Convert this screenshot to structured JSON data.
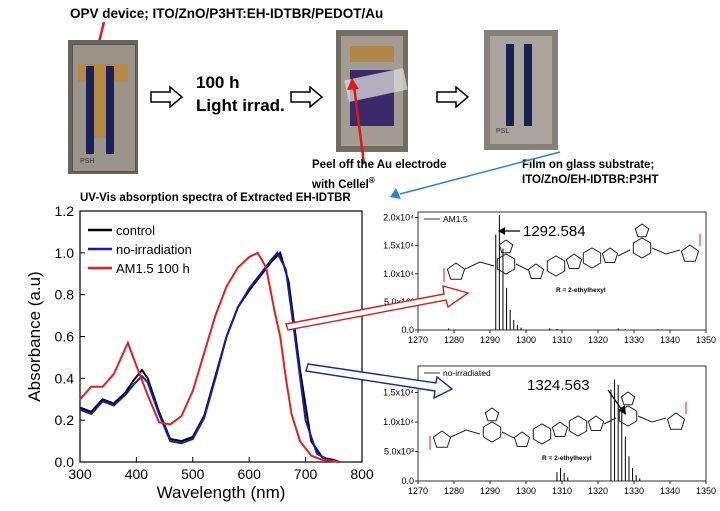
{
  "header": {
    "device_label": "OPV device; ITO/ZnO/P3HT:EH-IDTBR/PEDOT/Au",
    "step1_line1": "100 h",
    "step1_line2": "Light irrad.",
    "peel_line1": "Peel off the Au electrode",
    "peel_line2": "with Cellel",
    "peel_sup": "®",
    "film_line1": "Film on glass substrate;",
    "film_line2": "ITO/ZnO/EH-IDTBR:P3HT"
  },
  "photo_labels": {
    "photo1_corner": "PSH",
    "photo3_corner": "PSL"
  },
  "chart_data": [
    {
      "type": "line",
      "title": "UV-Vis absorption spectra of Extracted EH-IDTBR",
      "xlabel": "Wavelength (nm)",
      "ylabel": "Absorbance (a.u)",
      "xlim": [
        300,
        800
      ],
      "ylim": [
        0,
        1.2
      ],
      "xticks": [
        "300",
        "400",
        "500",
        "600",
        "700",
        "800"
      ],
      "yticks": [
        "0.0",
        "0.2",
        "0.4",
        "0.6",
        "0.8",
        "1.0",
        "1.2"
      ],
      "grid": false,
      "legend_position": "top-left",
      "series": [
        {
          "name": "control",
          "color": "#000000",
          "x": [
            300,
            320,
            340,
            360,
            380,
            395,
            410,
            420,
            440,
            460,
            480,
            500,
            520,
            540,
            560,
            580,
            600,
            620,
            640,
            655,
            670,
            690,
            710,
            730,
            750,
            760
          ],
          "y": [
            0.26,
            0.24,
            0.3,
            0.28,
            0.33,
            0.39,
            0.44,
            0.4,
            0.24,
            0.11,
            0.1,
            0.12,
            0.22,
            0.41,
            0.6,
            0.74,
            0.82,
            0.89,
            0.96,
            1.0,
            0.86,
            0.44,
            0.1,
            0.02,
            0.01,
            0.0
          ]
        },
        {
          "name": "no-irradiation",
          "color": "#1a1aa8",
          "x": [
            300,
            320,
            340,
            360,
            380,
            395,
            410,
            420,
            440,
            460,
            480,
            500,
            520,
            540,
            560,
            580,
            600,
            620,
            640,
            650,
            665,
            680,
            700,
            720,
            740,
            760
          ],
          "y": [
            0.25,
            0.23,
            0.29,
            0.27,
            0.32,
            0.37,
            0.41,
            0.38,
            0.23,
            0.1,
            0.09,
            0.11,
            0.21,
            0.4,
            0.6,
            0.74,
            0.83,
            0.9,
            0.97,
            1.0,
            0.92,
            0.62,
            0.2,
            0.04,
            0.01,
            0.0
          ]
        },
        {
          "name": "AM1.5 100 h",
          "color": "#e02020",
          "x": [
            300,
            320,
            340,
            360,
            385,
            400,
            420,
            440,
            460,
            480,
            500,
            520,
            540,
            560,
            580,
            600,
            615,
            630,
            645,
            655,
            665,
            675,
            690,
            710,
            730,
            760
          ],
          "y": [
            0.3,
            0.36,
            0.36,
            0.42,
            0.57,
            0.46,
            0.32,
            0.19,
            0.18,
            0.22,
            0.34,
            0.52,
            0.7,
            0.84,
            0.93,
            0.98,
            1.0,
            0.93,
            0.72,
            0.6,
            0.4,
            0.23,
            0.1,
            0.03,
            0.01,
            0.0
          ]
        }
      ]
    },
    {
      "type": "bar",
      "series_name": "AM1.5",
      "peak_label": "1292.584",
      "xlim": [
        1270,
        1350
      ],
      "ylim": [
        0,
        21000
      ],
      "xticks": [
        "1270",
        "1280",
        "1290",
        "1300",
        "1310",
        "1320",
        "1330",
        "1340",
        "1350"
      ],
      "yticks": [
        "0.0",
        "5.0x10³",
        "1.0x10⁴",
        "1.5x10⁴",
        "2.0x10⁴"
      ],
      "ytick_values": [
        0,
        5000,
        10000,
        15000,
        20000
      ],
      "x": [
        1278.5,
        1291.6,
        1292.6,
        1293.6,
        1294.6,
        1295.6,
        1296.6,
        1297.6,
        1298.6,
        1306.6,
        1308.6,
        1325.6,
        1327.6,
        1336.6
      ],
      "y": [
        300,
        17000,
        20500,
        14500,
        7500,
        3600,
        1800,
        900,
        400,
        300,
        200,
        300,
        200,
        150
      ],
      "substituent_label": "R = 2-ethylhexyl"
    },
    {
      "type": "bar",
      "series_name": "no-irradiated",
      "peak_label": "1324.563",
      "xlim": [
        1270,
        1350
      ],
      "ylim": [
        0,
        19500
      ],
      "xticks": [
        "1270",
        "1280",
        "1290",
        "1300",
        "1310",
        "1320",
        "1330",
        "1340",
        "1350"
      ],
      "yticks": [
        "0.0",
        "5.0x10³",
        "1.0x10⁴",
        "1.5x10⁴"
      ],
      "ytick_values": [
        0,
        5000,
        10000,
        15000
      ],
      "x": [
        1308.6,
        1309.6,
        1310.6,
        1311.6,
        1323.6,
        1324.6,
        1325.6,
        1326.6,
        1327.6,
        1328.6,
        1329.6,
        1330.6,
        1331.6
      ],
      "y": [
        1500,
        2200,
        1400,
        600,
        15500,
        17200,
        16300,
        12000,
        7500,
        4200,
        2200,
        1000,
        450
      ],
      "substituent_label": "R = 2-ethylhexyl"
    }
  ]
}
